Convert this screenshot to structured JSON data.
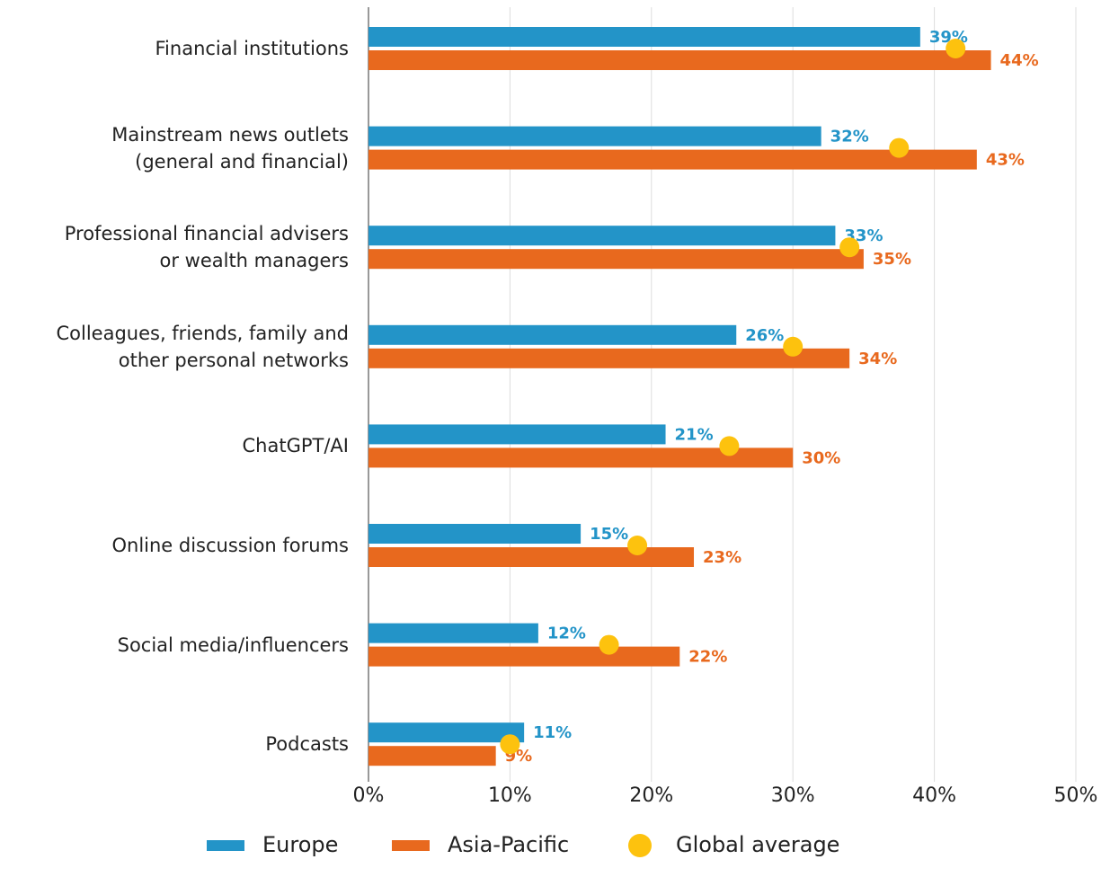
{
  "chart_data": {
    "type": "bar",
    "orientation": "horizontal",
    "categories": [
      "Financial institutions",
      "Mainstream news outlets\n(general and financial)",
      "Professional financial advisers\nor wealth managers",
      "Colleagues, friends, family and\nother personal networks",
      "ChatGPT/AI",
      "Online discussion forums",
      "Social media/influencers",
      "Podcasts"
    ],
    "series": [
      {
        "name": "Europe",
        "color": "#2394c8",
        "values": [
          39,
          32,
          33,
          26,
          21,
          15,
          12,
          11
        ],
        "value_labels": [
          "39%",
          "32%",
          "33%",
          "26%",
          "21%",
          "15%",
          "12%",
          "11%"
        ]
      },
      {
        "name": "Asia-Pacific",
        "color": "#e8691e",
        "values": [
          44,
          43,
          35,
          34,
          30,
          23,
          22,
          9
        ],
        "value_labels": [
          "44%",
          "43%",
          "35%",
          "34%",
          "30%",
          "23%",
          "22%",
          "9%"
        ]
      },
      {
        "name": "Global average",
        "type": "dot",
        "color": "#fdc20e",
        "values": [
          41.5,
          37.5,
          34,
          30,
          25.5,
          19,
          17,
          10
        ]
      }
    ],
    "xlim": [
      0,
      50
    ],
    "xticks": [
      {
        "value": 0,
        "label": "0%"
      },
      {
        "value": 10,
        "label": "10%"
      },
      {
        "value": 20,
        "label": "20%"
      },
      {
        "value": 30,
        "label": "30%"
      },
      {
        "value": 40,
        "label": "40%"
      },
      {
        "value": 50,
        "label": "50%"
      }
    ],
    "grid": true,
    "legend": "bottom"
  }
}
